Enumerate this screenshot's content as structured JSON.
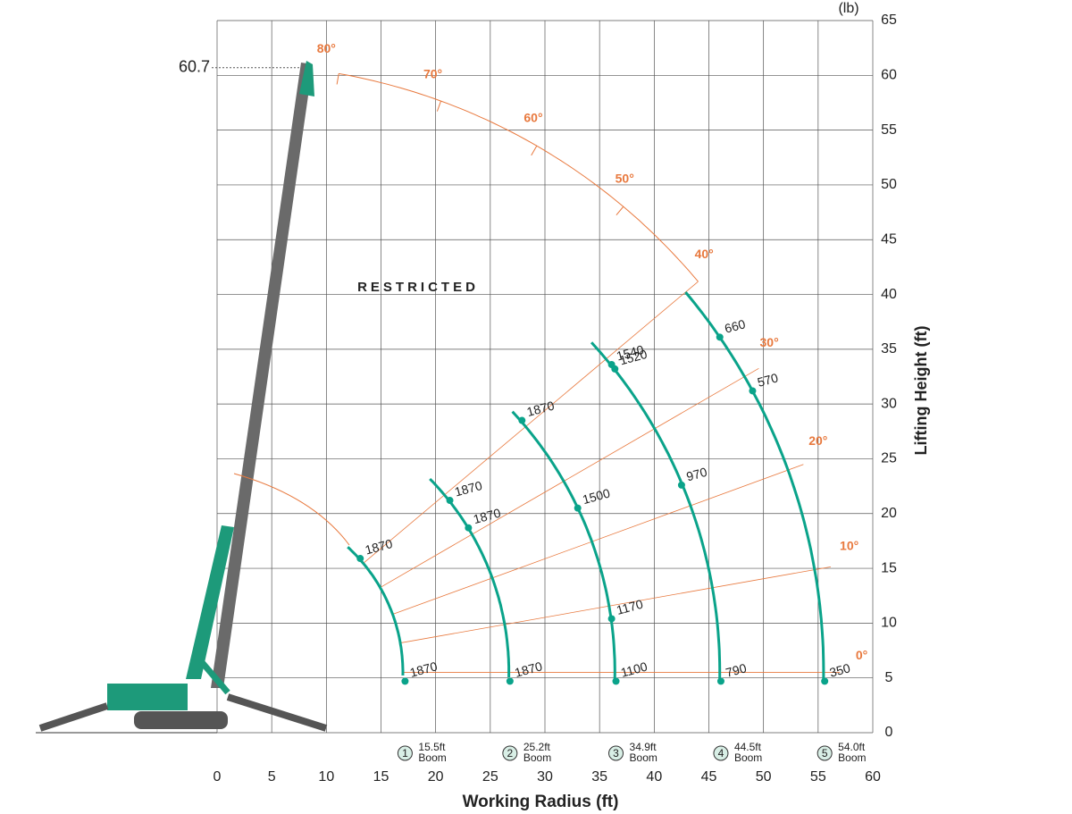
{
  "chart_data": {
    "type": "load-chart",
    "xlabel": "Working Radius (ft)",
    "ylabel": "Lifting Height (ft)",
    "unit_label": "(lb)",
    "annotation": "RESTRICTED",
    "max_height": 60.7,
    "xlim": [
      0,
      60
    ],
    "ylim": [
      0,
      65
    ],
    "xticks": [
      0,
      5,
      10,
      15,
      20,
      25,
      30,
      35,
      40,
      45,
      50,
      55,
      60
    ],
    "yticks": [
      0,
      5,
      10,
      15,
      20,
      25,
      30,
      35,
      40,
      45,
      50,
      55,
      60,
      65
    ],
    "grid": true,
    "angle_ticks": [
      {
        "value": 0,
        "label": "0°"
      },
      {
        "value": 10,
        "label": "10°"
      },
      {
        "value": 20,
        "label": "20°"
      },
      {
        "value": 30,
        "label": "30°"
      },
      {
        "value": 40,
        "label": "40°"
      },
      {
        "value": 50,
        "label": "50°"
      },
      {
        "value": 60,
        "label": "60°"
      },
      {
        "value": 70,
        "label": "70°"
      },
      {
        "value": 80,
        "label": "80°"
      }
    ],
    "series": [
      {
        "marker": 1,
        "boom": {
          "value": 15.5,
          "label": "15.5ft"
        },
        "unit": "Boom",
        "max_angle": 47.6,
        "color": "#0aa38a",
        "x": [
          13.1,
          17.2
        ],
        "y": [
          15.9,
          4.7
        ],
        "loads": [
          1870,
          1870
        ]
      },
      {
        "marker": 2,
        "boom": {
          "value": 25.2,
          "label": "25.2ft"
        },
        "unit": "Boom",
        "max_angle": 44.5,
        "color": "#0aa38a",
        "x": [
          21.3,
          23.0,
          26.8
        ],
        "y": [
          21.2,
          18.7,
          4.7
        ],
        "loads": [
          1870,
          1870,
          1870
        ]
      },
      {
        "marker": 3,
        "boom": {
          "value": 34.9,
          "label": "34.9ft"
        },
        "unit": "Boom",
        "max_angle": 43,
        "color": "#0aa38a",
        "x": [
          27.9,
          33.0,
          36.1,
          36.5
        ],
        "y": [
          28.5,
          20.5,
          10.4,
          4.7
        ],
        "loads": [
          1870,
          1500,
          1170,
          1100
        ]
      },
      {
        "marker": 4,
        "boom": {
          "value": 44.5,
          "label": "44.5ft"
        },
        "unit": "Boom",
        "max_angle": 42.6,
        "color": "#0aa38a",
        "x": [
          36.1,
          36.4,
          42.5,
          46.1
        ],
        "y": [
          33.6,
          33.2,
          22.6,
          4.7
        ],
        "loads": [
          1540,
          1520,
          970,
          790
        ]
      },
      {
        "marker": 5,
        "boom": {
          "value": 54.0,
          "label": "54.0ft"
        },
        "unit": "Boom",
        "max_angle": 40,
        "color": "#0aa38a",
        "x": [
          46.0,
          49.0,
          55.6
        ],
        "y": [
          36.1,
          31.2,
          4.7
        ],
        "loads": [
          660,
          570,
          350
        ]
      }
    ]
  }
}
